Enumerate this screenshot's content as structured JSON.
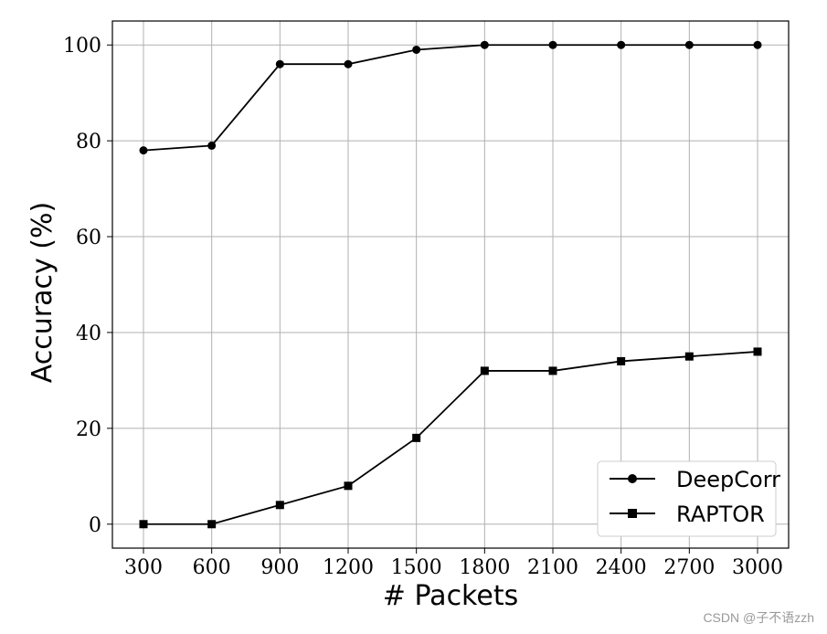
{
  "chart_data": {
    "type": "line",
    "x": [
      300,
      600,
      900,
      1200,
      1500,
      1800,
      2100,
      2400,
      2700,
      3000
    ],
    "xticks": [
      "300",
      "600",
      "900",
      "1200",
      "1500",
      "1800",
      "2100",
      "2400",
      "2700",
      "3000"
    ],
    "yticks": [
      "0",
      "20",
      "40",
      "60",
      "80",
      "100"
    ],
    "xlabel": "# Packets",
    "ylabel": "Accuracy (%)",
    "ylim": [
      -5,
      105
    ],
    "grid": true,
    "legend_position": "lower-right",
    "series": [
      {
        "name": "DeepCorr",
        "marker": "circle",
        "color": "#000000",
        "values": [
          78,
          79,
          96,
          96,
          99,
          100,
          100,
          100,
          100,
          100
        ]
      },
      {
        "name": "RAPTOR",
        "marker": "square",
        "color": "#000000",
        "values": [
          0,
          0,
          4,
          8,
          18,
          32,
          32,
          34,
          35,
          36
        ]
      }
    ]
  },
  "watermark": "CSDN @子不语zzh"
}
